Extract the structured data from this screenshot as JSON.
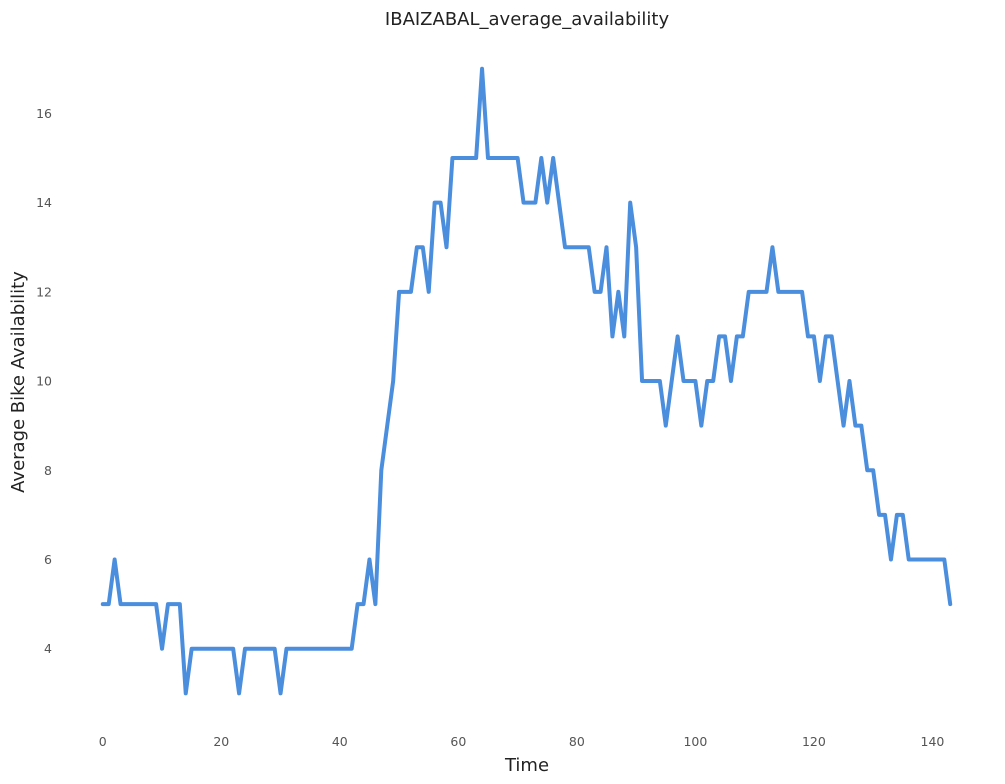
{
  "chart_data": {
    "type": "line",
    "title": "IBAIZABAL_average_availability",
    "xlabel": "Time",
    "ylabel": "Average Bike Availability",
    "xlim": [
      -3,
      146
    ],
    "ylim": [
      2.2,
      17.6
    ],
    "xticks": [
      0,
      20,
      40,
      60,
      80,
      100,
      120,
      140
    ],
    "yticks": [
      4,
      6,
      8,
      10,
      12,
      14,
      16
    ],
    "grid": false,
    "legend": "none",
    "line_color": "#4A8EDD",
    "series": [
      {
        "x": [
          0,
          1,
          2,
          3,
          4,
          5,
          6,
          7,
          8,
          9,
          10,
          11,
          12,
          13,
          14,
          15,
          16,
          17,
          18,
          19,
          20,
          21,
          22,
          23,
          24,
          25,
          26,
          27,
          28,
          29,
          30,
          31,
          32,
          33,
          34,
          35,
          36,
          37,
          38,
          39,
          40,
          41,
          42,
          43,
          44,
          45,
          46,
          47,
          48,
          49,
          50,
          51,
          52,
          53,
          54,
          55,
          56,
          57,
          58,
          59,
          60,
          61,
          62,
          63,
          64,
          65,
          66,
          67,
          68,
          69,
          70,
          71,
          72,
          73,
          74,
          75,
          76,
          77,
          78,
          79,
          80,
          81,
          82,
          83,
          84,
          85,
          86,
          87,
          88,
          89,
          90,
          91,
          92,
          93,
          94,
          95,
          96,
          97,
          98,
          99,
          100,
          101,
          102,
          103,
          104,
          105,
          106,
          107,
          108,
          109,
          110,
          111,
          112,
          113,
          114,
          115,
          116,
          117,
          118,
          119,
          120,
          121,
          122,
          123,
          124,
          125,
          126,
          127,
          128,
          129,
          130,
          131,
          132,
          133,
          134,
          135,
          136,
          137,
          138,
          139,
          140,
          141,
          142,
          143
        ],
        "values": [
          5,
          5,
          6,
          5,
          5,
          5,
          5,
          5,
          5,
          5,
          4,
          5,
          5,
          5,
          3,
          4,
          4,
          4,
          4,
          4,
          4,
          4,
          4,
          3,
          4,
          4,
          4,
          4,
          4,
          4,
          3,
          4,
          4,
          4,
          4,
          4,
          4,
          4,
          4,
          4,
          4,
          4,
          4,
          5,
          5,
          6,
          5,
          8,
          9,
          10,
          12,
          12,
          12,
          13,
          13,
          12,
          14,
          14,
          13,
          15,
          15,
          15,
          15,
          15,
          17,
          15,
          15,
          15,
          15,
          15,
          15,
          14,
          14,
          14,
          15,
          14,
          15,
          14,
          13,
          13,
          13,
          13,
          13,
          12,
          12,
          13,
          11,
          12,
          11,
          14,
          13,
          10,
          10,
          10,
          10,
          9,
          10,
          11,
          10,
          10,
          10,
          9,
          10,
          10,
          11,
          11,
          10,
          11,
          11,
          12,
          12,
          12,
          12,
          13,
          12,
          12,
          12,
          12,
          12,
          11,
          11,
          10,
          11,
          11,
          10,
          9,
          10,
          9,
          9,
          8,
          8,
          7,
          7,
          6,
          7,
          7,
          6,
          6,
          6,
          6,
          6,
          6,
          6,
          5
        ]
      }
    ]
  }
}
